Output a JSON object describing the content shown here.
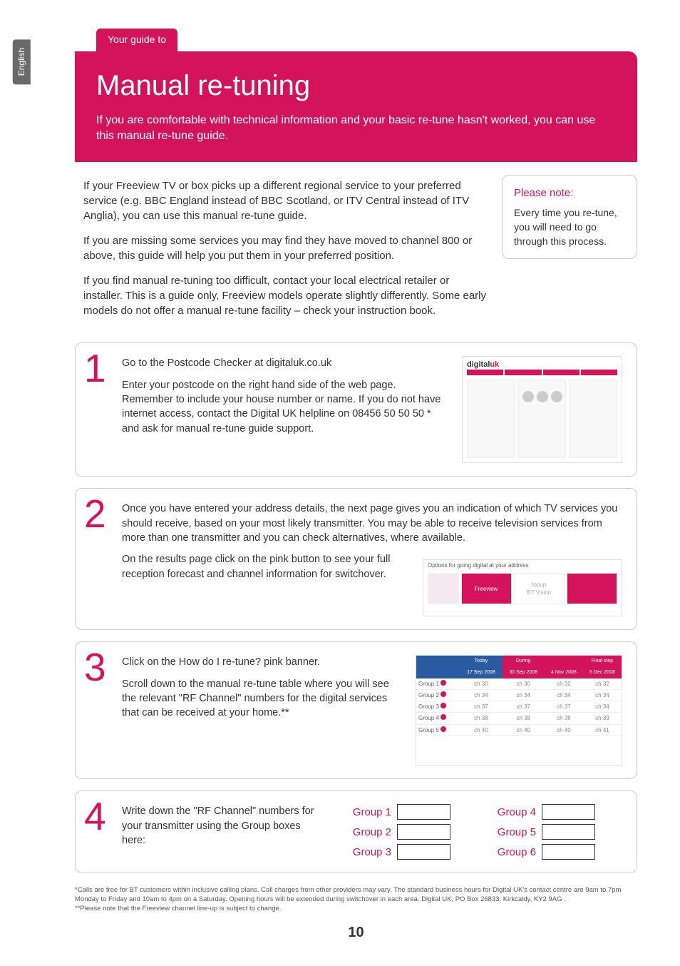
{
  "lang_tab": "English",
  "guide_tab": "Your guide to",
  "title": "Manual re-tuning",
  "subtitle": "If you are comfortable with technical information and your basic re-tune hasn't worked, you can use this manual re-tune guide.",
  "intro": {
    "p1": "If your Freeview TV or box picks up a different regional service to your preferred service (e.g. BBC England instead of BBC Scotland, or ITV Central instead of ITV Anglia), you can use this manual re-tune guide.",
    "p2": "If you are missing some services you may find they have moved to channel 800 or above, this guide will help you put them in your preferred position.",
    "p3": "If you find manual re-tuning too difficult, contact your local electrical retailer or installer. This is a guide only, Freeview models operate slightly differently. Some early models do not offer a manual re-tune facility – check your instruction book."
  },
  "note": {
    "heading": "Please note:",
    "body": "Every time you re-tune, you will need to go through this process."
  },
  "steps": {
    "s1": {
      "n": "1",
      "p1": "Go to the Postcode Checker at digitaluk.co.uk",
      "p2": "Enter your postcode on the right hand side of the web page. Remember to include your house number or name. If you do not have internet access, contact the Digital UK helpline on 08456 50 50 50 * and ask for manual re-tune guide support."
    },
    "s2": {
      "n": "2",
      "p1": "Once you have entered your address details, the next page gives you an indication of which TV services you should receive, based on your most likely transmitter. You may be able to receive television services from more than one transmitter and you can check alternatives, where available.",
      "p2": "On the results page click on the pink button to see your full reception forecast and channel information for switchover."
    },
    "s3": {
      "n": "3",
      "p1": "Click on the How do I re-tune? pink banner.",
      "p2": "Scroll down to the manual re-tune table where you will see the relevant \"RF Channel\" numbers for the digital services that can be received at your home.**"
    },
    "s4": {
      "n": "4",
      "p1": "Write down the \"RF Channel\" numbers for your transmitter using the Group boxes here:"
    }
  },
  "mock1": {
    "logo": "digitaluk"
  },
  "mock2": {
    "hdr": "Options for going digital at your address",
    "freeview": "Freeview",
    "topup": "topup",
    "btv": "BT Vision"
  },
  "mock3": {
    "headers": [
      "",
      "Today",
      "During",
      "",
      "Final step"
    ],
    "sub": [
      "",
      "17 Sep 2008",
      "30 Sep 2008",
      "4 Nov 2008",
      "5 Dec 2008"
    ],
    "rows": [
      [
        "Group 1",
        "ch 30",
        "ch 30",
        "ch 32",
        "ch 32"
      ],
      [
        "Group 2",
        "ch 34",
        "ch 34",
        "ch 34",
        "ch 34"
      ],
      [
        "Group 3",
        "ch 37",
        "ch 37",
        "ch 37",
        "ch 34"
      ],
      [
        "Group 4",
        "ch 38",
        "ch 38",
        "ch 38",
        "ch 39"
      ],
      [
        "Group 5",
        "ch 40",
        "ch 40",
        "ch 40",
        "ch 41"
      ]
    ]
  },
  "groups": {
    "g1": "Group 1",
    "g2": "Group 2",
    "g3": "Group 3",
    "g4": "Group 4",
    "g5": "Group 5",
    "g6": "Group 6"
  },
  "footnotes": {
    "f1": "*Calls are free for BT customers within inclusive calling plans. Call charges from other providers may vary. The standard business hours for Digital UK's contact centre are 9am to 7pm Monday to Friday and 10am to 4pm on a Saturday. Opening hours will be extended during switchover in each area. Digital UK, PO Box 26833, Kirkcaldy, KY2 9AG .",
    "f2": "**Please note that the Freeview channel line-up is subject to change."
  },
  "pagenum": "10"
}
